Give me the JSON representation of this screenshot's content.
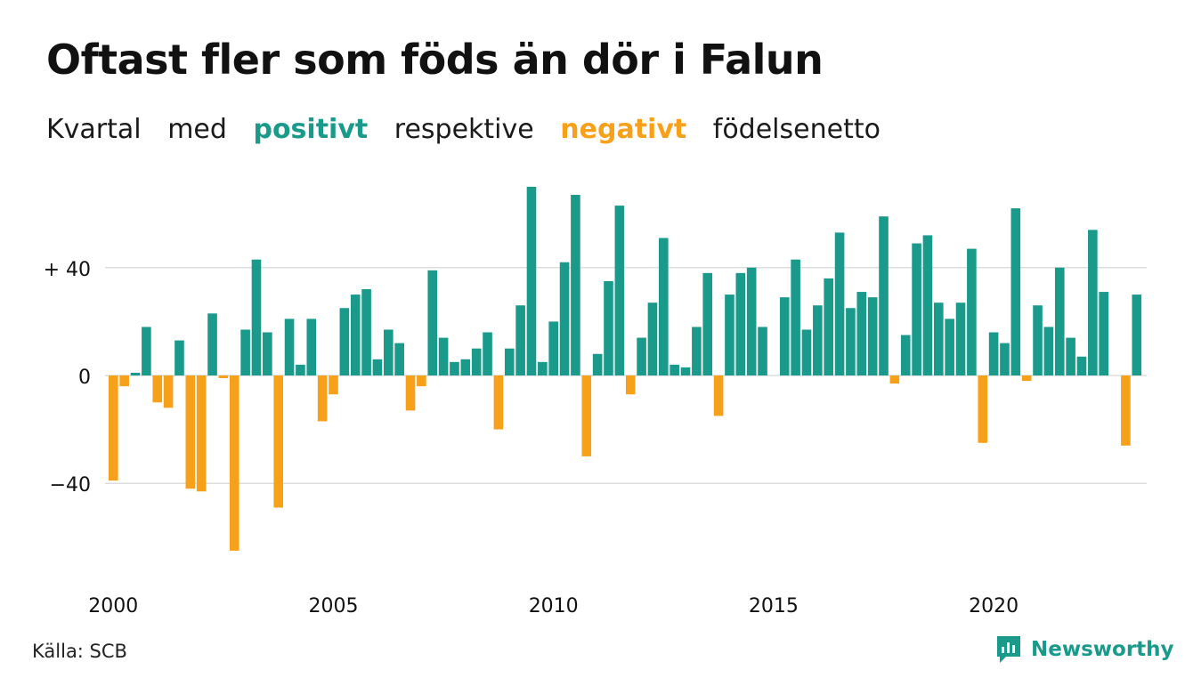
{
  "title": "Oftast fler som föds än dör i Falun",
  "subtitle": {
    "w1": "Kvartal",
    "w2": "med",
    "positive": "positivt",
    "w3": "respektive",
    "negative": "negativt",
    "w4": "födelsenetto"
  },
  "source": "Källa: SCB",
  "brand": "Newsworthy",
  "colors": {
    "positive": "#1a9a8a",
    "negative": "#f7a11a",
    "grid": "#dddddd",
    "text": "#111111"
  },
  "chart_data": {
    "type": "bar",
    "x_start_year": 2000,
    "periods_per_year": 4,
    "values": [
      -39,
      -4,
      1,
      18,
      -10,
      -12,
      13,
      -42,
      -43,
      23,
      -1,
      -65,
      17,
      43,
      16,
      -49,
      21,
      4,
      21,
      -17,
      -7,
      25,
      30,
      32,
      6,
      17,
      12,
      -13,
      -4,
      39,
      14,
      5,
      6,
      10,
      16,
      -20,
      10,
      26,
      70,
      5,
      20,
      42,
      67,
      -30,
      8,
      35,
      63,
      -7,
      14,
      27,
      51,
      4,
      3,
      18,
      38,
      -15,
      30,
      38,
      40,
      18,
      null,
      29,
      43,
      17,
      26,
      36,
      53,
      25,
      31,
      29,
      59,
      -3,
      15,
      49,
      52,
      27,
      21,
      27,
      47,
      -25,
      16,
      12,
      62,
      -2,
      26,
      18,
      40,
      14,
      7,
      54,
      31,
      null,
      -26,
      30
    ],
    "y_ticks": [
      {
        "value": 40,
        "label": "+ 40"
      },
      {
        "value": 0,
        "label": "0"
      },
      {
        "value": -40,
        "label": "−40"
      }
    ],
    "x_ticks": [
      {
        "value": 2000,
        "label": "2000"
      },
      {
        "value": 2005,
        "label": "2005"
      },
      {
        "value": 2010,
        "label": "2010"
      },
      {
        "value": 2015,
        "label": "2015"
      },
      {
        "value": 2020,
        "label": "2020"
      }
    ],
    "ylim": [
      -72,
      72
    ],
    "grid": true,
    "legend": "in subtitle",
    "xlabel": "",
    "ylabel": ""
  }
}
